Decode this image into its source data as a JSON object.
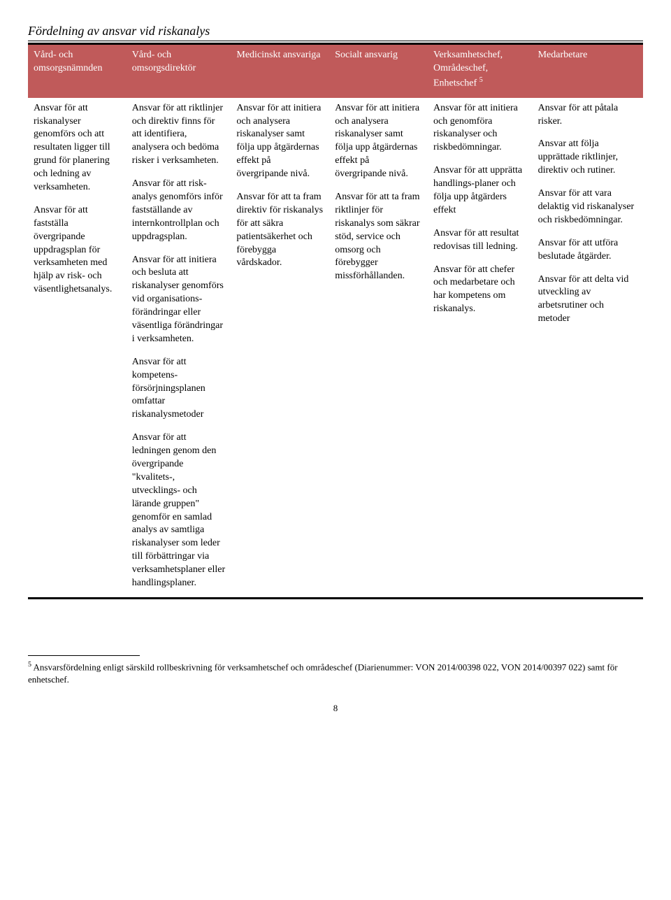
{
  "title": "Fördelning av ansvar vid riskanalys",
  "headers": {
    "col1": "Vård- och omsorgsnämnden",
    "col2": "Vård- och omsorgsdirektör",
    "col3": "Medicinskt ansvariga",
    "col4": "Socialt ansvarig",
    "col5_line1": "Verksamhetschef,",
    "col5_line2": "Områdeschef,",
    "col5_line3_pre": "Enhetschef ",
    "col5_sup": "5",
    "col6": "Medarbetare"
  },
  "body": {
    "col1": {
      "p1": "Ansvar för att riskanalyser genomförs och att resultaten ligger till grund för planering och ledning av verksamheten.",
      "p2": "Ansvar för att fastställa övergripande uppdragsplan för verksamheten med hjälp av risk- och väsentlighetsanalys."
    },
    "col2": {
      "p1": "Ansvar för att riktlinjer och direktiv finns för att identifiera, analysera och bedöma risker i verksamheten.",
      "p2": "Ansvar för att risk-analys genomförs inför fastställande av internkontrollplan och uppdragsplan.",
      "p3": "Ansvar för att initiera och besluta att riskanalyser genomförs vid organisations-förändringar eller väsentliga förändringar i verksamheten.",
      "p4": "Ansvar för att kompetens-försörjningsplanen omfattar riskanalysmetoder",
      "p5": "Ansvar för att ledningen genom den övergripande \"kvalitets-, utvecklings- och lärande gruppen\" genomför en samlad analys av samtliga riskanalyser som leder till förbättringar via verksamhetsplaner eller handlingsplaner."
    },
    "col3": {
      "p1": "Ansvar för att initiera och analysera riskanalyser samt följa upp åtgärdernas effekt på övergripande nivå.",
      "p2": "Ansvar för att ta fram direktiv för riskanalys för att säkra patientsäkerhet och förebygga vårdskador."
    },
    "col4": {
      "p1": "Ansvar för att initiera och analysera riskanalyser samt följa upp åtgärdernas effekt på övergripande nivå.",
      "p2": "Ansvar för att ta fram riktlinjer för riskanalys som säkrar stöd, service och omsorg och förebygger missförhållanden."
    },
    "col5": {
      "p1": "Ansvar för att initiera och genomföra riskanalyser och riskbedömningar.",
      "p2": "Ansvar för att upprätta handlings-planer och följa upp åtgärders effekt",
      "p3": "Ansvar för att resultat redovisas till ledning.",
      "p4": "Ansvar för att chefer och medarbetare och har kompetens om riskanalys."
    },
    "col6": {
      "p1": "Ansvar för att påtala risker.",
      "p2": "Ansvar att följa upprättade riktlinjer, direktiv och rutiner.",
      "p3": "Ansvar för att vara delaktig vid riskanalyser och riskbedömningar.",
      "p4": "Ansvar för att utföra beslutade åtgärder.",
      "p5": "Ansvar för att delta vid utveckling av arbetsrutiner och metoder"
    }
  },
  "footnote": {
    "sup": "5",
    "text": " Ansvarsfördelning enligt särskild rollbeskrivning för verksamhetschef och områdeschef (Diarienummer: VON 2014/00398 022, VON 2014/00397 022) samt för enhetschef."
  },
  "page_number": "8"
}
